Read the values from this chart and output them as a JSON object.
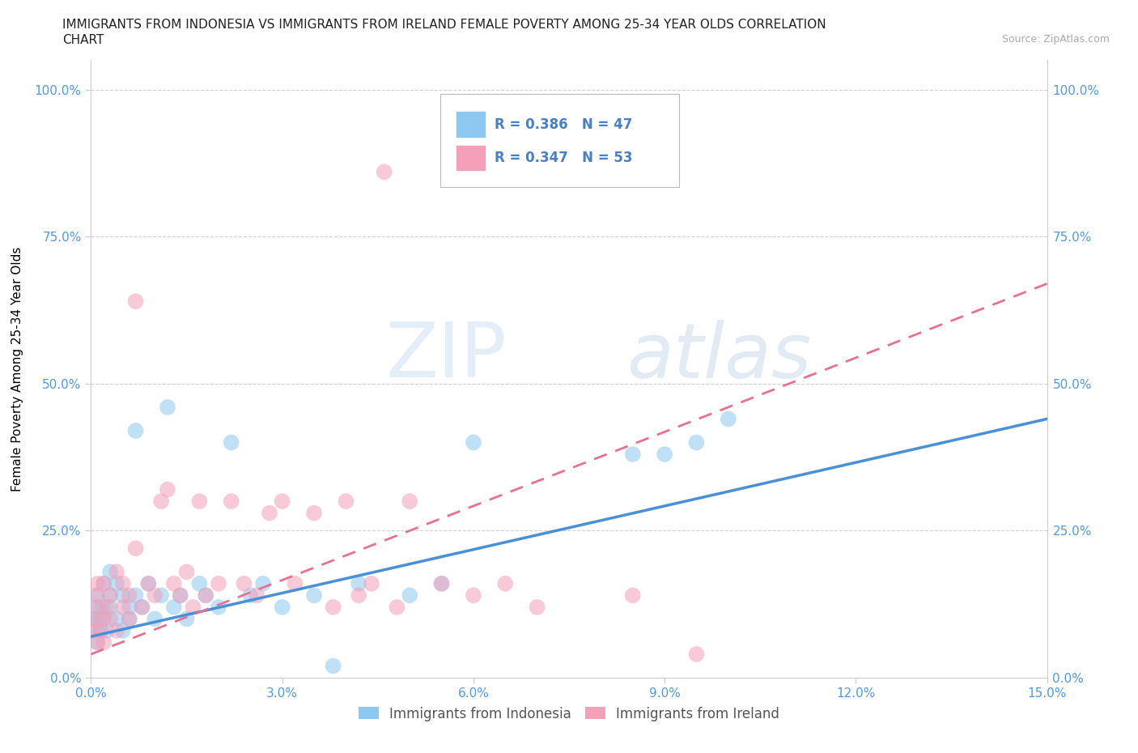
{
  "title_line1": "IMMIGRANTS FROM INDONESIA VS IMMIGRANTS FROM IRELAND FEMALE POVERTY AMONG 25-34 YEAR OLDS CORRELATION",
  "title_line2": "CHART",
  "source": "Source: ZipAtlas.com",
  "ylabel": "Female Poverty Among 25-34 Year Olds",
  "xlim": [
    0.0,
    0.15
  ],
  "ylim": [
    0.0,
    1.05
  ],
  "xticks": [
    0.0,
    0.03,
    0.06,
    0.09,
    0.12,
    0.15
  ],
  "xtick_labels": [
    "0.0%",
    "3.0%",
    "6.0%",
    "9.0%",
    "12.0%",
    "15.0%"
  ],
  "ytick_positions": [
    0.0,
    0.25,
    0.5,
    0.75,
    1.0
  ],
  "ytick_labels": [
    "0.0%",
    "25.0%",
    "50.0%",
    "75.0%",
    "100.0%"
  ],
  "legend_labels": [
    "Immigrants from Indonesia",
    "Immigrants from Ireland"
  ],
  "r_indonesia": 0.386,
  "n_indonesia": 47,
  "r_ireland": 0.347,
  "n_ireland": 53,
  "color_indonesia": "#8DC8F0",
  "color_ireland": "#F4A0B8",
  "color_indonesia_line": "#4A90D9",
  "color_ireland_line": "#E87090",
  "watermark_zip": "ZIP",
  "watermark_atlas": "atlas",
  "indo_x": [
    0.0003,
    0.0005,
    0.0008,
    0.001,
    0.001,
    0.0012,
    0.0015,
    0.0018,
    0.002,
    0.002,
    0.0025,
    0.003,
    0.003,
    0.003,
    0.004,
    0.004,
    0.005,
    0.005,
    0.006,
    0.006,
    0.007,
    0.007,
    0.008,
    0.009,
    0.01,
    0.011,
    0.012,
    0.013,
    0.014,
    0.015,
    0.017,
    0.018,
    0.02,
    0.022,
    0.025,
    0.027,
    0.03,
    0.035,
    0.038,
    0.042,
    0.05,
    0.055,
    0.06,
    0.085,
    0.09,
    0.095,
    0.1
  ],
  "indo_y": [
    0.08,
    0.1,
    0.12,
    0.06,
    0.14,
    0.1,
    0.08,
    0.12,
    0.1,
    0.16,
    0.08,
    0.12,
    0.14,
    0.18,
    0.1,
    0.16,
    0.08,
    0.14,
    0.1,
    0.12,
    0.14,
    0.42,
    0.12,
    0.16,
    0.1,
    0.14,
    0.46,
    0.12,
    0.14,
    0.1,
    0.16,
    0.14,
    0.12,
    0.4,
    0.14,
    0.16,
    0.12,
    0.14,
    0.02,
    0.16,
    0.14,
    0.16,
    0.4,
    0.38,
    0.38,
    0.4,
    0.44
  ],
  "ire_x": [
    0.0003,
    0.0005,
    0.0008,
    0.001,
    0.001,
    0.0012,
    0.0015,
    0.0018,
    0.002,
    0.002,
    0.0025,
    0.003,
    0.003,
    0.004,
    0.004,
    0.005,
    0.005,
    0.006,
    0.006,
    0.007,
    0.007,
    0.008,
    0.009,
    0.01,
    0.011,
    0.012,
    0.013,
    0.014,
    0.015,
    0.016,
    0.017,
    0.018,
    0.02,
    0.022,
    0.024,
    0.026,
    0.028,
    0.03,
    0.032,
    0.035,
    0.038,
    0.04,
    0.042,
    0.044,
    0.046,
    0.048,
    0.05,
    0.055,
    0.06,
    0.065,
    0.07,
    0.085,
    0.095
  ],
  "ire_y": [
    0.1,
    0.08,
    0.14,
    0.06,
    0.16,
    0.12,
    0.08,
    0.1,
    0.16,
    0.06,
    0.12,
    0.1,
    0.14,
    0.08,
    0.18,
    0.12,
    0.16,
    0.1,
    0.14,
    0.22,
    0.64,
    0.12,
    0.16,
    0.14,
    0.3,
    0.32,
    0.16,
    0.14,
    0.18,
    0.12,
    0.3,
    0.14,
    0.16,
    0.3,
    0.16,
    0.14,
    0.28,
    0.3,
    0.16,
    0.28,
    0.12,
    0.3,
    0.14,
    0.16,
    0.86,
    0.12,
    0.3,
    0.16,
    0.14,
    0.16,
    0.12,
    0.14,
    0.04
  ],
  "title_fontsize": 11,
  "axis_label_fontsize": 11,
  "tick_fontsize": 11
}
